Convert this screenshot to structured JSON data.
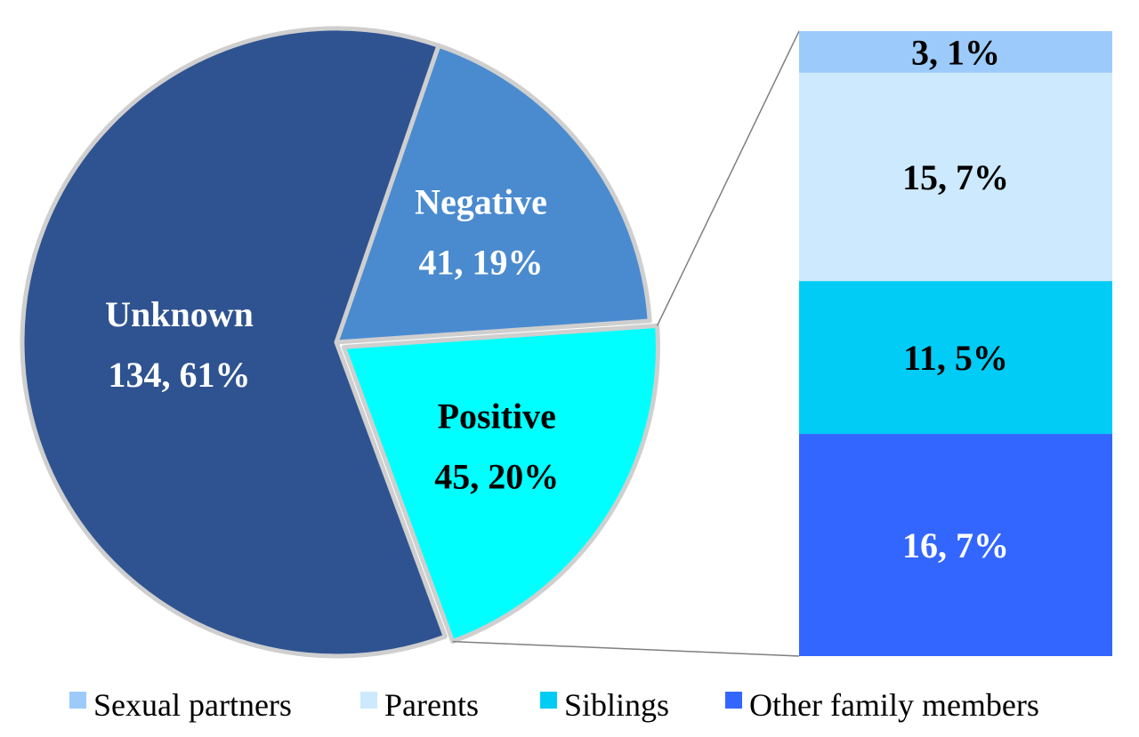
{
  "chart_data": {
    "type": "pie",
    "pie": {
      "slices": [
        {
          "name": "Negative",
          "count": 41,
          "percent_label": "19%",
          "color": "#4a8bd0",
          "label_color": "#ffffff"
        },
        {
          "name": "Positive",
          "count": 45,
          "percent_label": "20%",
          "color": "#00ffff",
          "label_color": "#000000",
          "exploded": true
        },
        {
          "name": "Unknown",
          "count": 134,
          "percent_label": "61%",
          "color": "#2f5391",
          "label_color": "#ffffff"
        }
      ]
    },
    "breakdown": {
      "type": "stacked_bar",
      "of_slice": "Positive",
      "segments": [
        {
          "name": "Sexual partners",
          "count": 3,
          "percent_label": "1%",
          "color": "#9ccbfb",
          "label_color": "#000000"
        },
        {
          "name": "Parents",
          "count": 15,
          "percent_label": "7%",
          "color": "#cce9fd",
          "label_color": "#000000"
        },
        {
          "name": "Siblings",
          "count": 11,
          "percent_label": "5%",
          "color": "#00ccf5",
          "label_color": "#000000"
        },
        {
          "name": "Other family members",
          "count": 16,
          "percent_label": "7%",
          "color": "#3366ff",
          "label_color": "#ffffff"
        }
      ]
    },
    "legend": {
      "position": "bottom",
      "entries": [
        "Sexual partners",
        "Parents",
        "Siblings",
        "Other family members"
      ]
    }
  }
}
